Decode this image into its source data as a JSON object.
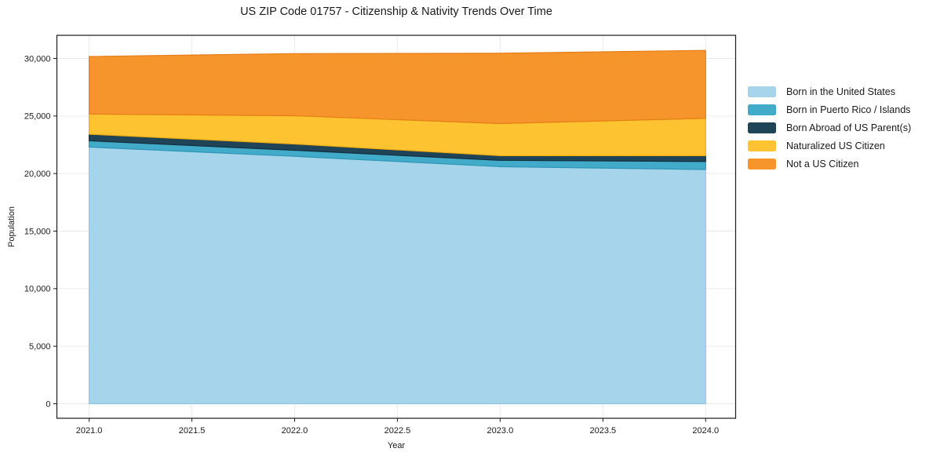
{
  "figure": {
    "background": "#ffffff"
  },
  "chart_data": {
    "type": "area",
    "stacked": true,
    "title": "US ZIP Code 01757 - Citizenship & Nativity Trends Over Time",
    "xlabel": "Year",
    "ylabel": "Population",
    "x": [
      2021,
      2022,
      2023,
      2024
    ],
    "series": [
      {
        "name": "Born in the United States",
        "color": "#A6D4EA",
        "edge": "#8FC7E2",
        "values": [
          22300,
          21500,
          20600,
          20350
        ]
      },
      {
        "name": "Born in Puerto Rico / Islands",
        "color": "#41ABC9",
        "edge": "#3096B6",
        "values": [
          550,
          520,
          550,
          700
        ]
      },
      {
        "name": "Born Abroad of US Parent(s)",
        "color": "#1F4458",
        "edge": "#14303E",
        "values": [
          570,
          550,
          400,
          500
        ]
      },
      {
        "name": "Naturalized US Citizen",
        "color": "#FDC331",
        "edge": "#EFAD12",
        "values": [
          1750,
          2450,
          2800,
          3250
        ]
      },
      {
        "name": "Not a US Citizen",
        "color": "#F6952B",
        "edge": "#E67E17",
        "values": [
          5000,
          5400,
          6100,
          5900
        ]
      }
    ],
    "totals": [
      30170,
      30420,
      30450,
      30700
    ],
    "xlim": [
      2020.843,
      2024.146
    ],
    "ylim": [
      -1260,
      32010
    ],
    "xticks": [
      2021.0,
      2021.5,
      2022.0,
      2022.5,
      2023.0,
      2023.5,
      2024.0
    ],
    "xtick_labels": [
      "2021.0",
      "2021.5",
      "2022.0",
      "2022.5",
      "2023.0",
      "2023.5",
      "2024.0"
    ],
    "yticks": [
      0,
      5000,
      10000,
      15000,
      20000,
      25000,
      30000
    ],
    "ytick_labels": [
      "0",
      "5,000",
      "10,000",
      "15,000",
      "20,000",
      "25,000",
      "30,000"
    ],
    "grid": true,
    "legend_position": "right-outside",
    "style": {
      "grid_color": "#ebebeb",
      "spine_color": "#1a1a1a",
      "tick_color": "#1a1a1a",
      "text_color": "#1a1a1a"
    }
  }
}
